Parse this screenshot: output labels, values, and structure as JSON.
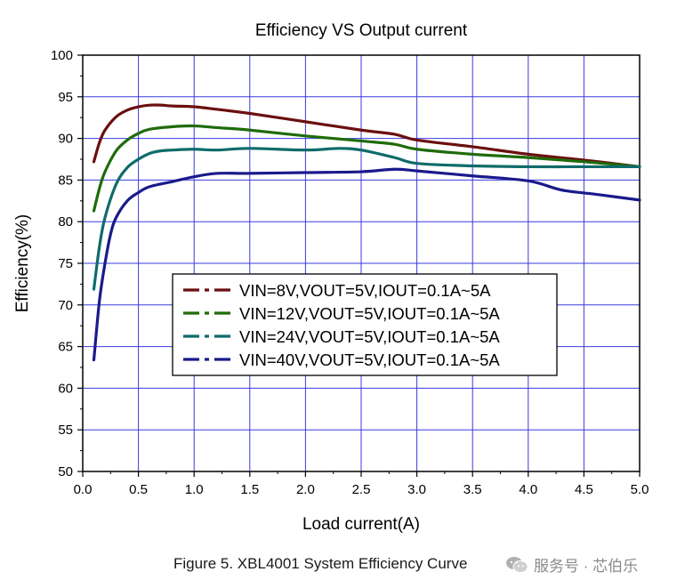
{
  "chart_data": {
    "type": "line",
    "title": "Efficiency VS Output current",
    "xlabel": "Load current(A)",
    "ylabel": "Efficiency(%)",
    "xlim": [
      0.0,
      5.0
    ],
    "ylim": [
      50,
      100
    ],
    "xticks": [
      "0.0",
      "0.5",
      "1.0",
      "1.5",
      "2.0",
      "2.5",
      "3.0",
      "3.5",
      "4.0",
      "4.5",
      "5.0"
    ],
    "yticks": [
      "50",
      "55",
      "60",
      "65",
      "70",
      "75",
      "80",
      "85",
      "90",
      "95",
      "100"
    ],
    "grid": true,
    "legend_position": "center-left",
    "series": [
      {
        "name": "VIN=8V,VOUT=5V,IOUT=0.1A~5A",
        "color": "#6b0f0f",
        "x": [
          0.1,
          0.15,
          0.2,
          0.3,
          0.4,
          0.5,
          0.6,
          0.7,
          0.8,
          1.0,
          1.2,
          1.5,
          2.0,
          2.5,
          2.8,
          3.0,
          3.5,
          4.0,
          4.5,
          5.0
        ],
        "y": [
          87.2,
          89.5,
          91.0,
          92.6,
          93.4,
          93.8,
          94.0,
          94.0,
          93.9,
          93.8,
          93.5,
          93.0,
          92.0,
          91.0,
          90.5,
          89.8,
          89.0,
          88.1,
          87.4,
          86.6
        ]
      },
      {
        "name": "VIN=12V,VOUT=5V,IOUT=0.1A~5A",
        "color": "#1f6b0a",
        "x": [
          0.1,
          0.15,
          0.2,
          0.3,
          0.4,
          0.5,
          0.6,
          0.8,
          1.0,
          1.2,
          1.5,
          2.0,
          2.5,
          2.8,
          3.0,
          3.5,
          4.0,
          4.5,
          5.0
        ],
        "y": [
          81.3,
          84.0,
          86.0,
          88.5,
          89.8,
          90.6,
          91.1,
          91.4,
          91.5,
          91.3,
          91.0,
          90.3,
          89.7,
          89.3,
          88.7,
          88.1,
          87.7,
          87.2,
          86.6
        ]
      },
      {
        "name": "VIN=24V,VOUT=5V,IOUT=0.1A~5A",
        "color": "#0f6b6b",
        "x": [
          0.1,
          0.15,
          0.2,
          0.3,
          0.4,
          0.5,
          0.6,
          0.7,
          0.8,
          1.0,
          1.2,
          1.5,
          2.0,
          2.3,
          2.5,
          2.8,
          3.0,
          3.5,
          4.0,
          4.5,
          5.0
        ],
        "y": [
          71.9,
          77.0,
          80.5,
          84.5,
          86.5,
          87.5,
          88.2,
          88.5,
          88.6,
          88.7,
          88.6,
          88.8,
          88.6,
          88.8,
          88.6,
          87.7,
          87.0,
          86.7,
          86.6,
          86.6,
          86.6
        ]
      },
      {
        "name": "VIN=40V,VOUT=5V,IOUT=0.1A~5A",
        "color": "#1a1a8c",
        "x": [
          0.1,
          0.15,
          0.2,
          0.25,
          0.3,
          0.4,
          0.5,
          0.6,
          0.8,
          1.0,
          1.2,
          1.5,
          2.0,
          2.5,
          2.8,
          3.0,
          3.5,
          4.0,
          4.3,
          4.6,
          5.0
        ],
        "y": [
          63.4,
          70.5,
          75.0,
          78.5,
          80.5,
          82.5,
          83.5,
          84.2,
          84.8,
          85.4,
          85.8,
          85.8,
          85.9,
          86.0,
          86.3,
          86.1,
          85.5,
          84.9,
          83.8,
          83.3,
          82.6
        ]
      }
    ]
  },
  "caption": {
    "text": "Figure 5. XBL4001 System Efficiency Curve",
    "watermark": "服务号 · 芯伯乐"
  }
}
